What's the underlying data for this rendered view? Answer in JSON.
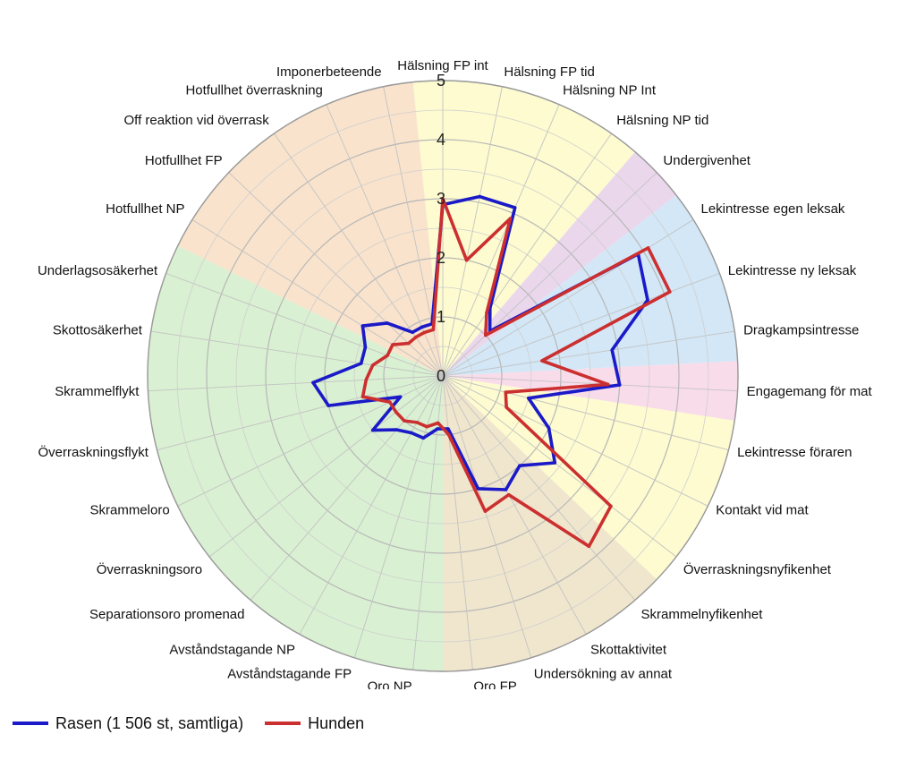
{
  "chart_data": {
    "type": "radar",
    "title": "",
    "rmax": 5,
    "ticks": [
      "0",
      "1",
      "2",
      "3",
      "4",
      "5"
    ],
    "categories": [
      "Hälsning FP int",
      "Hälsning FP tid",
      "Hälsning NP Int",
      "Hälsning NP tid",
      "Undergivenhet",
      "Lekintresse egen leksak",
      "Lekintresse ny leksak",
      "Dragkampsintresse",
      "Engagemang för mat",
      "Lekintresse föraren",
      "Kontakt vid mat",
      "Överraskningsnyfikenhet",
      "Skrammelnyfikenhet",
      "Skottaktivitet",
      "Undersökning av annat",
      "Oro FP",
      "Oro NP",
      "Avståndstagande FP",
      "Avståndstagande NP",
      "Separationsoro promenad",
      "Överraskningsoro",
      "Skrammeloro",
      "Överraskningsflykt",
      "Skrammelflykt",
      "Skottosäkerhet",
      "Underlagsosäkerhet",
      "Hotfullhet NP",
      "Hotfullhet FP",
      "Off reaktion vid överrask",
      "Hotfullhet överraskning",
      "Imponerbeteende"
    ],
    "sectors": [
      {
        "from": 0,
        "to": 3,
        "color": "#fdfbcf"
      },
      {
        "from": 4,
        "to": 4,
        "color": "#ead7ec"
      },
      {
        "from": 5,
        "to": 7,
        "color": "#d3e7f6"
      },
      {
        "from": 8,
        "to": 8,
        "color": "#f9dcea"
      },
      {
        "from": 9,
        "to": 11,
        "color": "#fdfbcf"
      },
      {
        "from": 12,
        "to": 15,
        "color": "#f0e6cd"
      },
      {
        "from": 16,
        "to": 25,
        "color": "#d9f0d2"
      },
      {
        "from": 26,
        "to": 30,
        "color": "#f9e3cc"
      }
    ],
    "series": [
      {
        "name": "Rasen (1 506 st, samtliga)",
        "color": "#1a1ac8",
        "values": [
          2.9,
          3.1,
          3.1,
          1.4,
          1.1,
          3.9,
          3.7,
          2.9,
          3.0,
          1.5,
          2.0,
          2.4,
          2.0,
          2.2,
          2.0,
          0.9,
          0.9,
          1.1,
          1.1,
          1.2,
          1.5,
          0.8,
          2.0,
          2.2,
          1.4,
          1.4,
          1.6,
          1.3,
          0.9,
          0.9,
          0.9
        ]
      },
      {
        "name": "Hunden",
        "color": "#cc2f2f",
        "values": [
          3.0,
          2.0,
          2.9,
          1.3,
          1.0,
          4.1,
          4.1,
          1.7,
          2.8,
          1.1,
          1.2,
          3.6,
          3.8,
          2.3,
          2.4,
          1.0,
          0.8,
          0.9,
          0.9,
          1.0,
          1.0,
          1.0,
          1.4,
          1.3,
          1.2,
          1.0,
          1.0,
          0.8,
          0.8,
          0.8,
          0.8
        ]
      }
    ]
  }
}
